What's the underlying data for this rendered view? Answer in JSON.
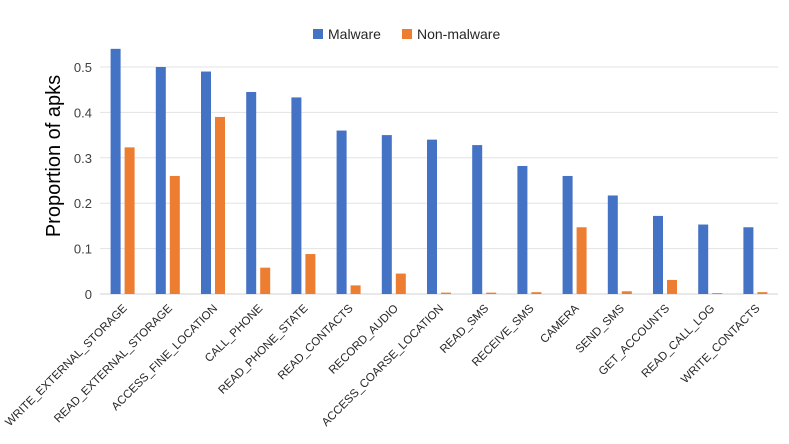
{
  "chart_data": {
    "type": "bar",
    "title": "",
    "xlabel": "",
    "ylabel": "Proportion of apks",
    "ylim": [
      0,
      0.55
    ],
    "yticks": [
      "0",
      "0.1",
      "0.2",
      "0.3",
      "0.4",
      "0.5"
    ],
    "grid": true,
    "legend_position": "top-center",
    "categories": [
      "WRITE_EXTERNAL_STORAGE",
      "READ_EXTERNAL_STORAGE",
      "ACCESS_FINE_LOCATION",
      "CALL_PHONE",
      "READ_PHONE_STATE",
      "READ_CONTACTS",
      "RECORD_AUDIO",
      "ACCESS_COARSE_LOCATION",
      "READ_SMS",
      "RECEIVE_SMS",
      "CAMERA",
      "SEND_SMS",
      "GET_ACCOUNTS",
      "READ_CALL_LOG",
      "WRITE_CONTACTS"
    ],
    "series": [
      {
        "name": "Malware",
        "color": "#4472C4",
        "values": [
          0.54,
          0.5,
          0.49,
          0.445,
          0.433,
          0.36,
          0.35,
          0.34,
          0.328,
          0.282,
          0.26,
          0.217,
          0.172,
          0.153,
          0.147
        ]
      },
      {
        "name": "Non-malware",
        "color": "#ED7D31",
        "values": [
          0.323,
          0.26,
          0.39,
          0.058,
          0.088,
          0.019,
          0.045,
          0.003,
          0.003,
          0.004,
          0.147,
          0.006,
          0.031,
          0.002,
          0.004
        ]
      }
    ]
  }
}
